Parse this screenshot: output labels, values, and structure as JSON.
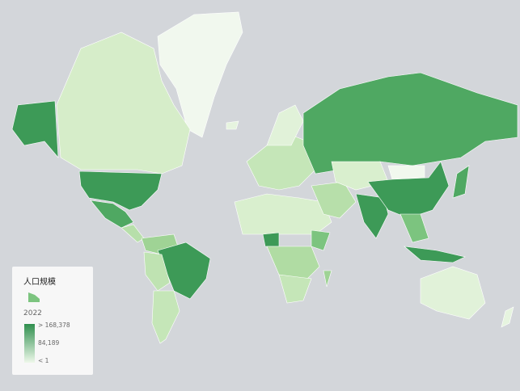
{
  "legend": {
    "title": "人口规模",
    "year": "2022",
    "max_label": "> 168,378",
    "mid_label": "84,189",
    "min_label": "< 1",
    "color_high": "#2f8f4e",
    "color_low": "#eef8ea"
  },
  "colors": {
    "background": "#d3d6da",
    "dark": "#3d9a57",
    "mid": "#7cc47f",
    "light": "#c5e6b8",
    "pale": "#e6f4df"
  }
}
